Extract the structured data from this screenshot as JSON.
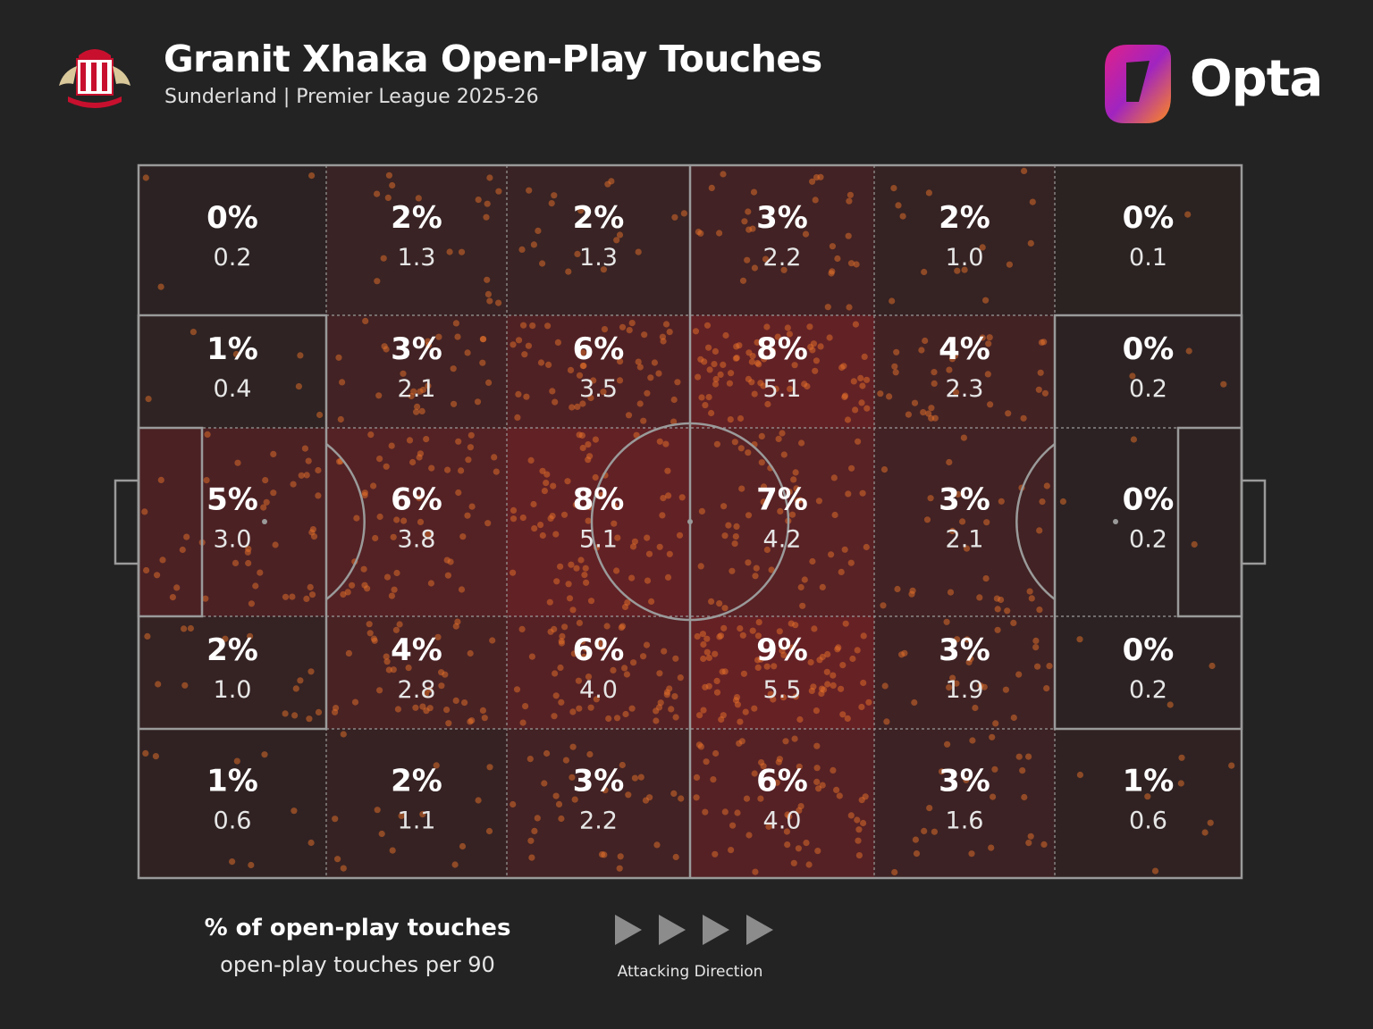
{
  "header": {
    "title": "Granit Xhaka Open-Play Touches",
    "subtitle": "Sunderland | Premier League 2025-26",
    "brand": "Opta"
  },
  "legend": {
    "primary": "% of open-play touches",
    "secondary": "open-play touches per 90",
    "direction": "Attacking Direction"
  },
  "colors": {
    "background": "#232323",
    "lines": "#9a9a9a",
    "heat": "#c0202a",
    "dots": "#e8722a"
  },
  "chart_data": {
    "type": "heatmap",
    "title": "Granit Xhaka Open-Play Touches",
    "subtitle": "Sunderland | Premier League 2025-26",
    "columns": 6,
    "rows": 5,
    "cells": [
      [
        {
          "pct": "0%",
          "p90": "0.2"
        },
        {
          "pct": "2%",
          "p90": "1.3"
        },
        {
          "pct": "2%",
          "p90": "1.3"
        },
        {
          "pct": "3%",
          "p90": "2.2"
        },
        {
          "pct": "2%",
          "p90": "1.0"
        },
        {
          "pct": "0%",
          "p90": "0.1"
        }
      ],
      [
        {
          "pct": "1%",
          "p90": "0.4"
        },
        {
          "pct": "3%",
          "p90": "2.1"
        },
        {
          "pct": "6%",
          "p90": "3.5"
        },
        {
          "pct": "8%",
          "p90": "5.1"
        },
        {
          "pct": "4%",
          "p90": "2.3"
        },
        {
          "pct": "0%",
          "p90": "0.2"
        }
      ],
      [
        {
          "pct": "5%",
          "p90": "3.0"
        },
        {
          "pct": "6%",
          "p90": "3.8"
        },
        {
          "pct": "8%",
          "p90": "5.1"
        },
        {
          "pct": "7%",
          "p90": "4.2"
        },
        {
          "pct": "3%",
          "p90": "2.1"
        },
        {
          "pct": "0%",
          "p90": "0.2"
        }
      ],
      [
        {
          "pct": "2%",
          "p90": "1.0"
        },
        {
          "pct": "4%",
          "p90": "2.8"
        },
        {
          "pct": "6%",
          "p90": "4.0"
        },
        {
          "pct": "9%",
          "p90": "5.5"
        },
        {
          "pct": "3%",
          "p90": "1.9"
        },
        {
          "pct": "0%",
          "p90": "0.2"
        }
      ],
      [
        {
          "pct": "1%",
          "p90": "0.6"
        },
        {
          "pct": "2%",
          "p90": "1.1"
        },
        {
          "pct": "3%",
          "p90": "2.2"
        },
        {
          "pct": "6%",
          "p90": "4.0"
        },
        {
          "pct": "3%",
          "p90": "1.6"
        },
        {
          "pct": "1%",
          "p90": "0.6"
        }
      ]
    ],
    "attacking_direction": "left-to-right"
  }
}
